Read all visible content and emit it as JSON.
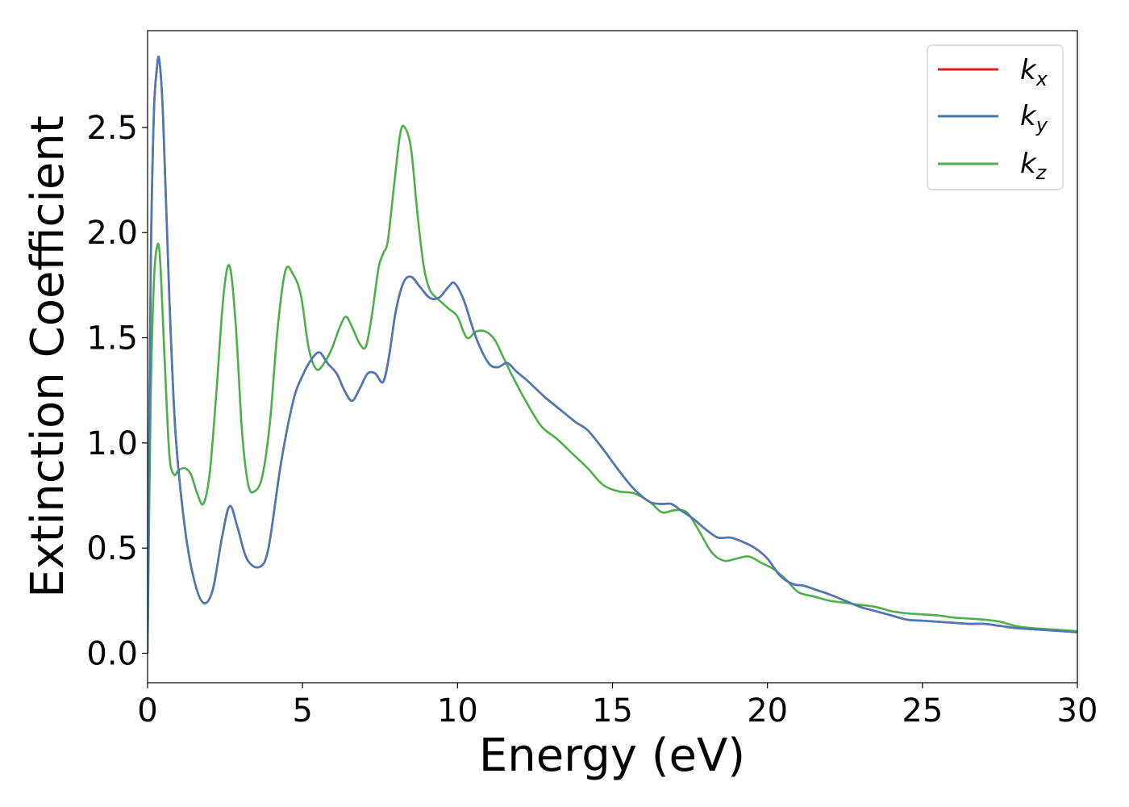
{
  "chart_data": {
    "type": "line",
    "title": "",
    "xlabel": "Energy (eV)",
    "ylabel": "Extinction Coefficient",
    "xlim": [
      0,
      30
    ],
    "ylim": [
      -0.14,
      2.96
    ],
    "xticks": [
      0,
      5,
      10,
      15,
      20,
      25,
      30
    ],
    "yticks": [
      0.0,
      0.5,
      1.0,
      1.5,
      2.0,
      2.5
    ],
    "xtick_labels": [
      "0",
      "5",
      "10",
      "15",
      "20",
      "25",
      "30"
    ],
    "ytick_labels": [
      "0.0",
      "0.5",
      "1.0",
      "1.5",
      "2.0",
      "2.5"
    ],
    "grid": false,
    "legend_position": "top-right",
    "series": [
      {
        "name": "k_x",
        "label_main": "k",
        "label_sub": "x",
        "color": "#e41a1c",
        "x": [
          0.0,
          0.1,
          0.2,
          0.3,
          0.38,
          0.5,
          0.7,
          0.9,
          1.2,
          1.5,
          1.8,
          2.1,
          2.4,
          2.65,
          2.9,
          3.2,
          3.6,
          3.9,
          4.3,
          4.7,
          5.0,
          5.3,
          5.55,
          5.8,
          6.1,
          6.35,
          6.6,
          6.85,
          7.1,
          7.35,
          7.6,
          7.8,
          8.0,
          8.25,
          8.5,
          8.8,
          9.1,
          9.4,
          9.7,
          9.9,
          10.2,
          10.6,
          11.0,
          11.3,
          11.6,
          11.9,
          12.3,
          12.8,
          13.3,
          13.8,
          14.2,
          14.7,
          15.2,
          15.7,
          16.2,
          16.6,
          16.9,
          17.2,
          17.6,
          18.0,
          18.4,
          18.8,
          19.2,
          19.6,
          20.0,
          20.4,
          20.8,
          21.2,
          21.6,
          22.0,
          22.5,
          23.0,
          23.5,
          24.0,
          24.5,
          25.0,
          25.5,
          26.0,
          26.5,
          27.0,
          27.5,
          28.0,
          28.5,
          29.0,
          29.5,
          30.0
        ],
        "y": [
          0.0,
          1.8,
          2.55,
          2.78,
          2.82,
          2.55,
          1.7,
          1.05,
          0.6,
          0.35,
          0.24,
          0.3,
          0.55,
          0.7,
          0.6,
          0.45,
          0.41,
          0.5,
          0.9,
          1.2,
          1.32,
          1.4,
          1.43,
          1.38,
          1.33,
          1.25,
          1.2,
          1.26,
          1.33,
          1.33,
          1.29,
          1.42,
          1.62,
          1.76,
          1.79,
          1.74,
          1.69,
          1.69,
          1.74,
          1.76,
          1.68,
          1.5,
          1.38,
          1.36,
          1.38,
          1.34,
          1.29,
          1.22,
          1.16,
          1.1,
          1.06,
          0.97,
          0.87,
          0.78,
          0.72,
          0.71,
          0.71,
          0.68,
          0.64,
          0.59,
          0.55,
          0.55,
          0.53,
          0.5,
          0.45,
          0.37,
          0.33,
          0.32,
          0.3,
          0.28,
          0.25,
          0.22,
          0.2,
          0.18,
          0.16,
          0.155,
          0.15,
          0.145,
          0.14,
          0.14,
          0.13,
          0.12,
          0.115,
          0.11,
          0.105,
          0.1
        ]
      },
      {
        "name": "k_y",
        "label_main": "k",
        "label_sub": "y",
        "color": "#4a7ab5",
        "x": [
          0.0,
          0.1,
          0.2,
          0.3,
          0.38,
          0.5,
          0.7,
          0.9,
          1.2,
          1.5,
          1.8,
          2.1,
          2.4,
          2.65,
          2.9,
          3.2,
          3.6,
          3.9,
          4.3,
          4.7,
          5.0,
          5.3,
          5.55,
          5.8,
          6.1,
          6.35,
          6.6,
          6.85,
          7.1,
          7.35,
          7.6,
          7.8,
          8.0,
          8.25,
          8.5,
          8.8,
          9.1,
          9.4,
          9.7,
          9.9,
          10.2,
          10.6,
          11.0,
          11.3,
          11.6,
          11.9,
          12.3,
          12.8,
          13.3,
          13.8,
          14.2,
          14.7,
          15.2,
          15.7,
          16.2,
          16.6,
          16.9,
          17.2,
          17.6,
          18.0,
          18.4,
          18.8,
          19.2,
          19.6,
          20.0,
          20.4,
          20.8,
          21.2,
          21.6,
          22.0,
          22.5,
          23.0,
          23.5,
          24.0,
          24.5,
          25.0,
          25.5,
          26.0,
          26.5,
          27.0,
          27.5,
          28.0,
          28.5,
          29.0,
          29.5,
          30.0
        ],
        "y": [
          0.0,
          1.8,
          2.55,
          2.78,
          2.82,
          2.55,
          1.7,
          1.05,
          0.6,
          0.35,
          0.24,
          0.3,
          0.55,
          0.7,
          0.6,
          0.45,
          0.41,
          0.5,
          0.9,
          1.2,
          1.32,
          1.4,
          1.43,
          1.38,
          1.33,
          1.25,
          1.2,
          1.26,
          1.33,
          1.33,
          1.29,
          1.42,
          1.62,
          1.76,
          1.79,
          1.74,
          1.69,
          1.69,
          1.74,
          1.76,
          1.68,
          1.5,
          1.38,
          1.36,
          1.38,
          1.34,
          1.29,
          1.22,
          1.16,
          1.1,
          1.06,
          0.97,
          0.87,
          0.78,
          0.72,
          0.71,
          0.71,
          0.68,
          0.64,
          0.59,
          0.55,
          0.55,
          0.53,
          0.5,
          0.45,
          0.37,
          0.33,
          0.32,
          0.3,
          0.28,
          0.25,
          0.22,
          0.2,
          0.18,
          0.16,
          0.155,
          0.15,
          0.145,
          0.14,
          0.14,
          0.13,
          0.12,
          0.115,
          0.11,
          0.105,
          0.1
        ]
      },
      {
        "name": "k_z",
        "label_main": "k",
        "label_sub": "z",
        "color": "#4daf4a",
        "x": [
          0.0,
          0.1,
          0.2,
          0.3,
          0.4,
          0.55,
          0.7,
          0.85,
          1.0,
          1.2,
          1.4,
          1.6,
          1.8,
          2.0,
          2.2,
          2.45,
          2.65,
          2.85,
          3.05,
          3.25,
          3.45,
          3.7,
          3.95,
          4.2,
          4.45,
          4.7,
          4.95,
          5.2,
          5.45,
          5.7,
          5.95,
          6.2,
          6.4,
          6.6,
          6.85,
          7.05,
          7.25,
          7.45,
          7.6,
          7.75,
          7.95,
          8.15,
          8.3,
          8.5,
          8.7,
          8.9,
          9.1,
          9.4,
          9.7,
          10.0,
          10.3,
          10.6,
          10.9,
          11.2,
          11.5,
          11.8,
          12.2,
          12.7,
          13.2,
          13.7,
          14.2,
          14.7,
          15.2,
          15.7,
          16.2,
          16.6,
          17.0,
          17.4,
          17.8,
          18.2,
          18.6,
          19.0,
          19.4,
          19.8,
          20.2,
          20.6,
          21.0,
          21.5,
          22.0,
          22.5,
          23.0,
          23.5,
          24.0,
          24.5,
          25.0,
          25.5,
          26.0,
          26.5,
          27.0,
          27.5,
          28.0,
          28.5,
          29.0,
          29.5,
          30.0
        ],
        "y": [
          0.0,
          1.2,
          1.75,
          1.93,
          1.88,
          1.4,
          0.95,
          0.85,
          0.87,
          0.88,
          0.85,
          0.76,
          0.71,
          0.85,
          1.2,
          1.7,
          1.84,
          1.55,
          1.05,
          0.8,
          0.77,
          0.84,
          1.1,
          1.55,
          1.82,
          1.8,
          1.7,
          1.45,
          1.35,
          1.38,
          1.45,
          1.55,
          1.6,
          1.55,
          1.47,
          1.46,
          1.62,
          1.83,
          1.9,
          1.96,
          2.22,
          2.47,
          2.5,
          2.4,
          2.1,
          1.85,
          1.73,
          1.68,
          1.64,
          1.6,
          1.5,
          1.53,
          1.53,
          1.49,
          1.4,
          1.31,
          1.2,
          1.08,
          1.02,
          0.95,
          0.88,
          0.8,
          0.77,
          0.76,
          0.72,
          0.67,
          0.68,
          0.67,
          0.58,
          0.48,
          0.44,
          0.45,
          0.46,
          0.43,
          0.4,
          0.35,
          0.29,
          0.27,
          0.25,
          0.24,
          0.23,
          0.22,
          0.2,
          0.19,
          0.185,
          0.18,
          0.17,
          0.165,
          0.16,
          0.15,
          0.13,
          0.12,
          0.115,
          0.11,
          0.105
        ]
      }
    ]
  }
}
